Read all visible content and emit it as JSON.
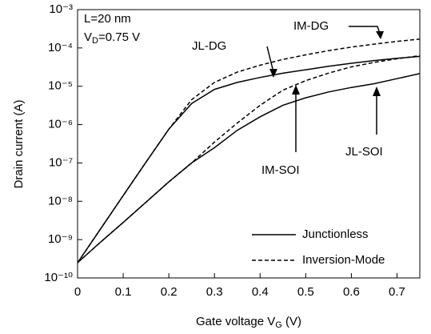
{
  "chart_data": {
    "type": "line",
    "ylabel": "Drain current (A)",
    "xlabel": [
      "Gate voltage V",
      "G",
      " (V)"
    ],
    "log_y": true,
    "x": [
      0,
      0.05,
      0.1,
      0.15,
      0.2,
      0.25,
      0.3,
      0.35,
      0.4,
      0.45,
      0.5,
      0.55,
      0.6,
      0.65,
      0.7,
      0.75
    ],
    "xlim": [
      0,
      0.75
    ],
    "xticks": [
      0,
      0.1,
      0.2,
      0.3,
      0.4,
      0.5,
      0.6,
      0.7
    ],
    "ylim": [
      1e-10,
      0.001
    ],
    "yticks": [
      {
        "value": 1e-10,
        "label": "10⁻¹⁰"
      },
      {
        "value": 1e-09,
        "label": "10⁻⁹"
      },
      {
        "value": 1e-08,
        "label": "10⁻⁸"
      },
      {
        "value": 1e-07,
        "label": "10⁻⁷"
      },
      {
        "value": 1e-06,
        "label": "10⁻⁶"
      },
      {
        "value": 1e-05,
        "label": "10⁻⁵"
      },
      {
        "value": 0.0001,
        "label": "10⁻⁴"
      },
      {
        "value": 0.001,
        "label": "10⁻³"
      }
    ],
    "annotations": {
      "length": "L=20 nm",
      "vd": [
        "V",
        "D",
        "=0.75 V"
      ]
    },
    "series": [
      {
        "name": "JL-DG",
        "style": "solid",
        "color": "#000000",
        "values": [
          2.5e-10,
          1.86e-09,
          1.41e-08,
          1.05e-07,
          7.6e-07,
          3.55e-06,
          8.3e-06,
          1.26e-05,
          1.7e-05,
          2.19e-05,
          2.69e-05,
          3.31e-05,
          3.98e-05,
          4.68e-05,
          5.37e-05,
          6.03e-05
        ]
      },
      {
        "name": "IM-DG",
        "style": "dashed",
        "color": "#000000",
        "values": [
          2.5e-10,
          1.86e-09,
          1.41e-08,
          1.05e-07,
          7.6e-07,
          4.47e-06,
          1.26e-05,
          2.34e-05,
          3.55e-05,
          5.01e-05,
          6.61e-05,
          8.51e-05,
          0.000105,
          0.000126,
          0.000148,
          0.00017
        ]
      },
      {
        "name": "JL-SOI",
        "style": "solid",
        "color": "#000000",
        "values": [
          2.5e-10,
          8.5e-10,
          2.8e-09,
          9.5e-09,
          3.2e-08,
          1e-07,
          2.5e-07,
          7.1e-07,
          1.6e-06,
          3.2e-06,
          5e-06,
          7.1e-06,
          9.3e-06,
          1.17e-05,
          1.58e-05,
          2.14e-05
        ]
      },
      {
        "name": "IM-SOI",
        "style": "dashed",
        "color": "#000000",
        "values": [
          2.5e-10,
          8.5e-10,
          2.8e-09,
          9.5e-09,
          3.2e-08,
          1e-07,
          3.5e-07,
          1.1e-06,
          3.2e-06,
          7.9e-06,
          1.4e-05,
          2.2e-05,
          3.2e-05,
          4.2e-05,
          5.2e-05,
          6.3e-05
        ]
      }
    ],
    "legend": [
      {
        "label": "Junctionless",
        "style": "solid"
      },
      {
        "label": "Inversion-Mode",
        "style": "dashed"
      }
    ]
  }
}
